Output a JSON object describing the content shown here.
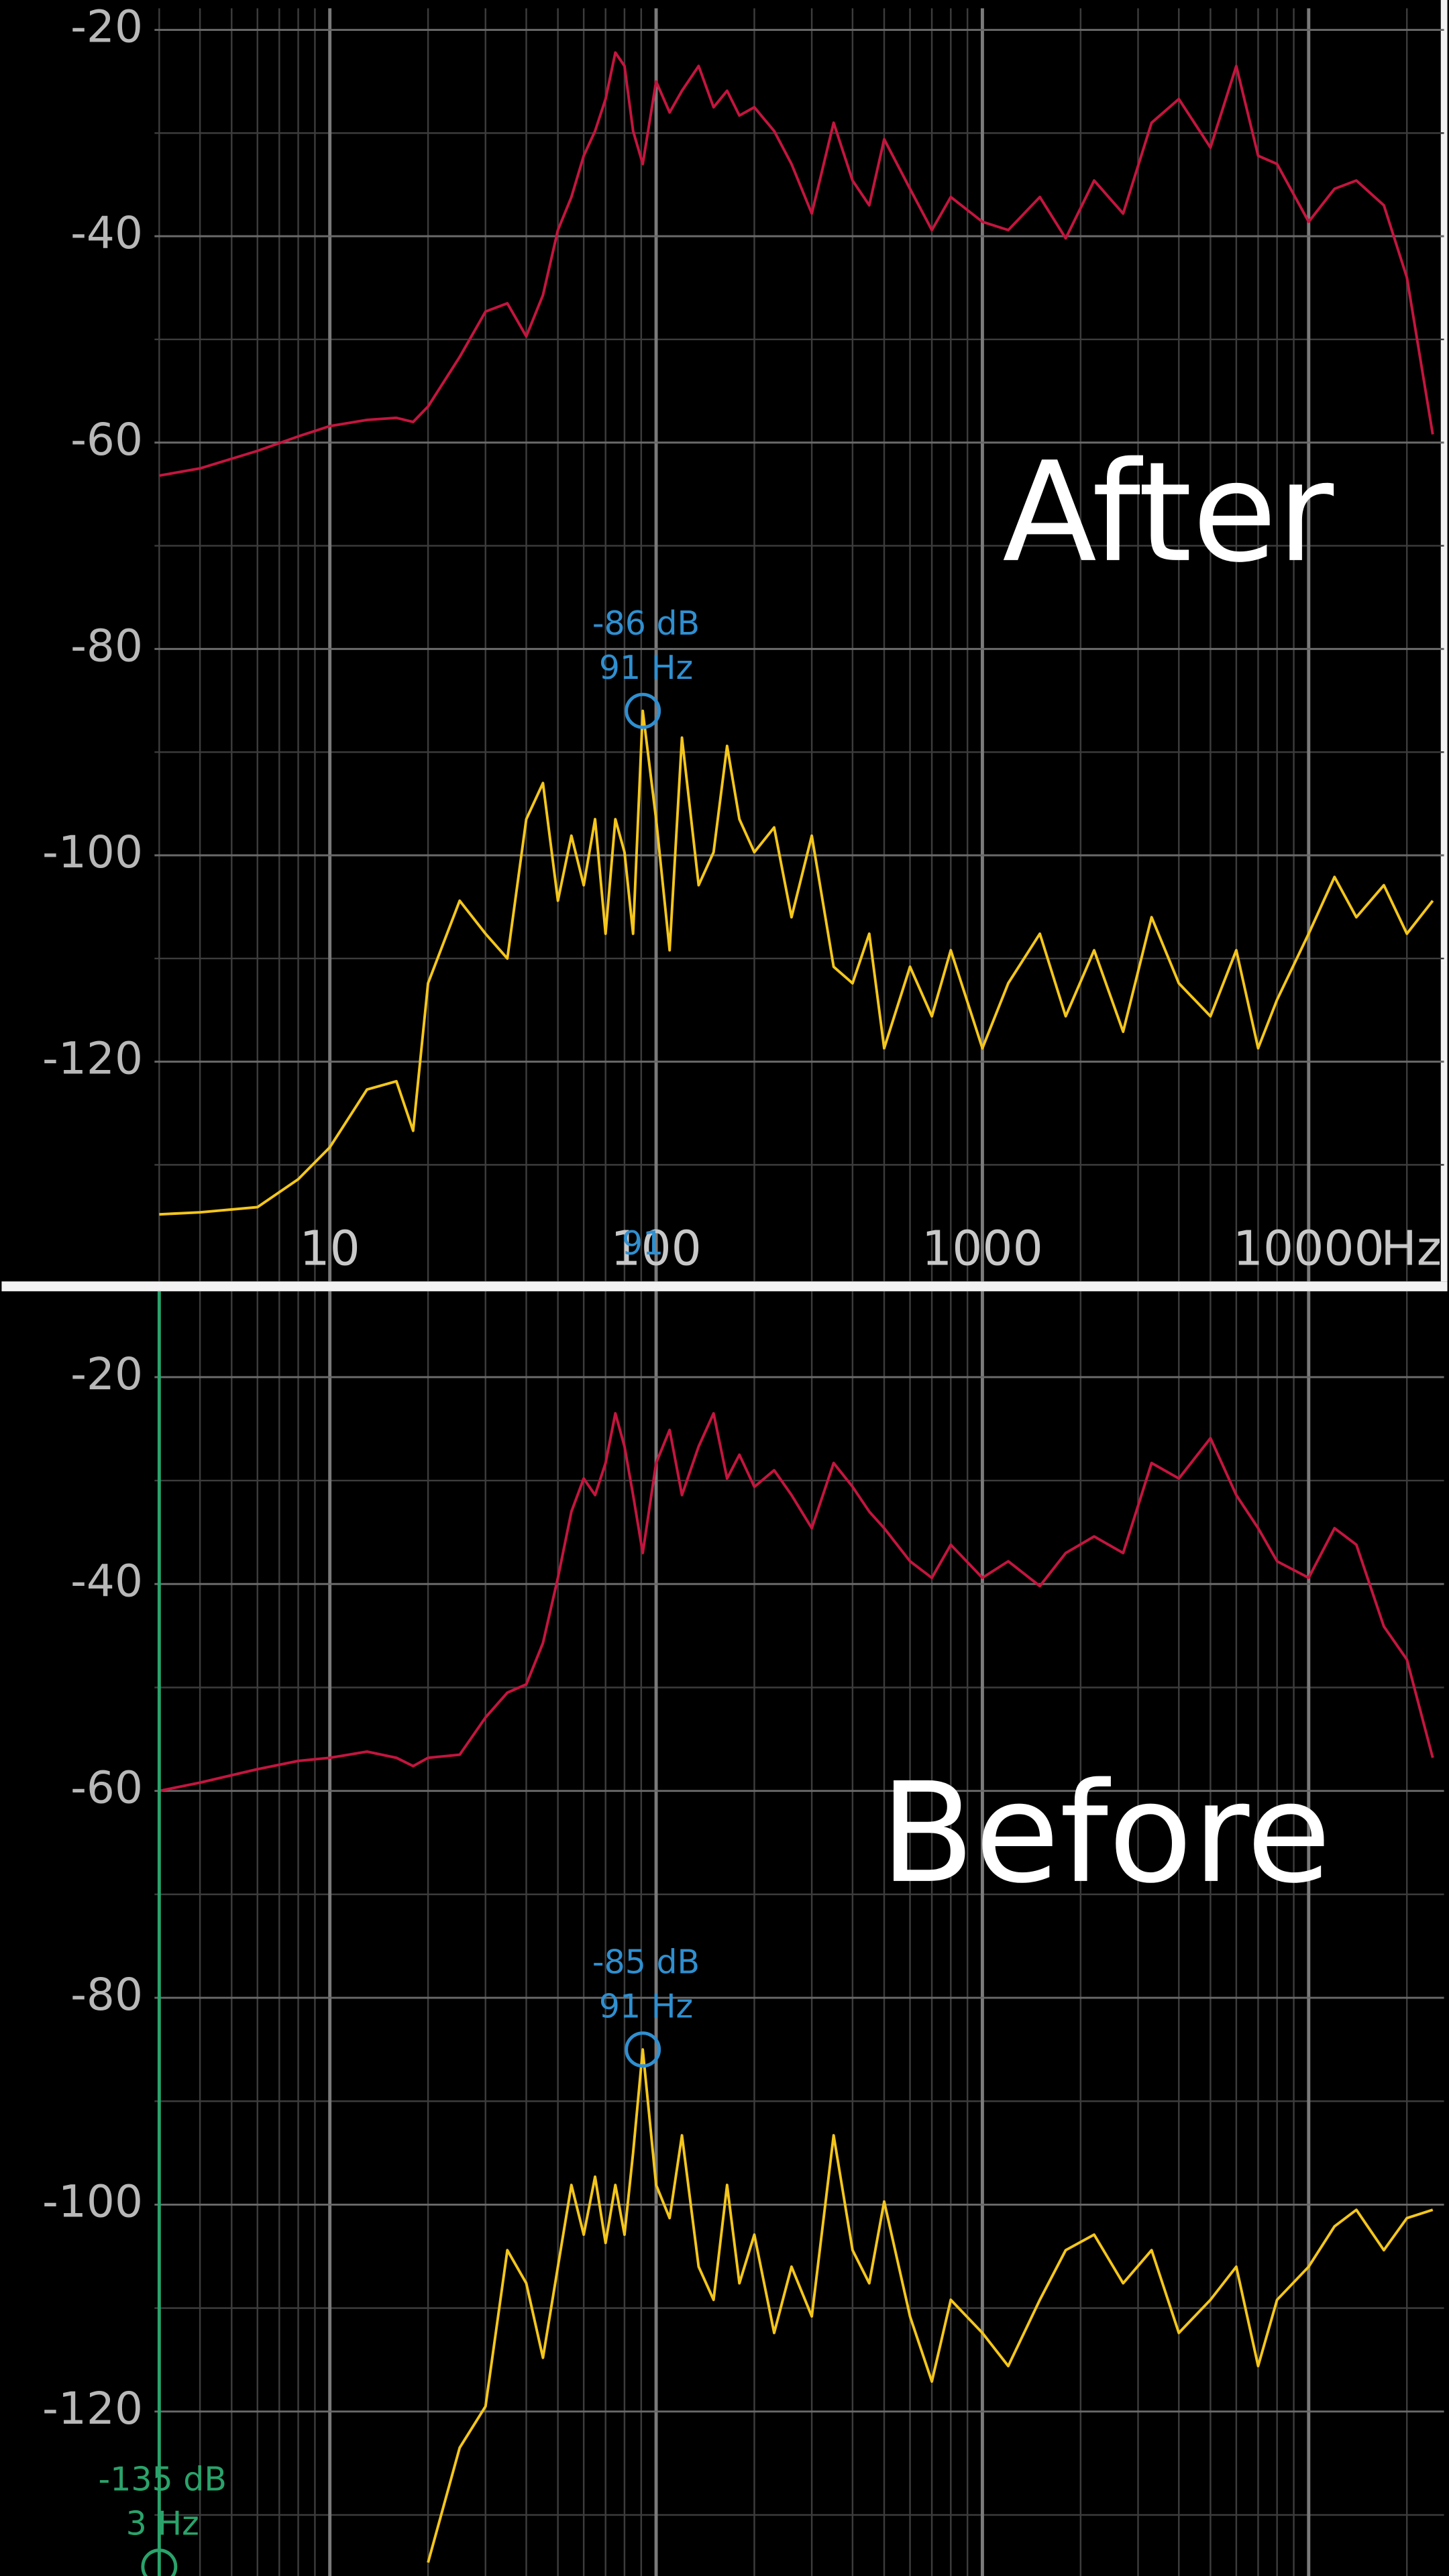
{
  "chart_data": [
    {
      "type": "line",
      "annotation": "After",
      "log_x": true,
      "grid": true,
      "show_xtick_labels": true,
      "x_unit": "Hz",
      "xlim": [
        2.9,
        26000
      ],
      "ylim": [
        -141.3,
        -17.9
      ],
      "xticks": [
        10,
        100,
        1000,
        10000
      ],
      "x_minor_ticks": [
        3,
        4,
        5,
        6,
        7,
        8,
        9,
        20,
        30,
        40,
        50,
        60,
        70,
        80,
        90,
        200,
        300,
        400,
        500,
        600,
        700,
        800,
        900,
        2000,
        3000,
        4000,
        5000,
        6000,
        7000,
        8000,
        9000,
        20000
      ],
      "yticks": [
        -20,
        -40,
        -60,
        -80,
        -100,
        -120
      ],
      "y_minor_ticks": [
        -30,
        -50,
        -70,
        -90,
        -110,
        -130
      ],
      "x": [
        3,
        4,
        6,
        8,
        10,
        13,
        16,
        18,
        20,
        25,
        30,
        35,
        40,
        45,
        50,
        55,
        60,
        65,
        70,
        75,
        80,
        85,
        91,
        100,
        110,
        120,
        135,
        150,
        165,
        180,
        200,
        230,
        260,
        300,
        350,
        400,
        450,
        500,
        600,
        700,
        800,
        1000,
        1200,
        1500,
        1800,
        2200,
        2700,
        3300,
        4000,
        5000,
        6000,
        7000,
        8000,
        10000,
        12000,
        14000,
        17000,
        20000,
        24000
      ],
      "series": [
        {
          "color": "#c4153f",
          "values": [
            -63.2,
            -62.5,
            -60.8,
            -59.4,
            -58.4,
            -57.8,
            -57.6,
            -58,
            -56.5,
            -51.7,
            -47.3,
            -46.5,
            -49.7,
            -45.7,
            -39.4,
            -36.2,
            -32.2,
            -29.8,
            -26.7,
            -22.2,
            -23.5,
            -29.8,
            -33,
            -25,
            -28,
            -25.9,
            -23.5,
            -27.5,
            -25.9,
            -28.3,
            -27.5,
            -29.8,
            -33,
            -37.8,
            -29,
            -34.6,
            -37,
            -30.6,
            -35.4,
            -39.4,
            -36.2,
            -38.6,
            -39.4,
            -36.2,
            -40.2,
            -34.6,
            -37.8,
            -29,
            -26.7,
            -31.4,
            -23.5,
            -32.2,
            -33,
            -38.6,
            -35.4,
            -34.6,
            -37,
            -44,
            -59.2
          ]
        },
        {
          "color": "#f4c61c",
          "values": [
            -134.8,
            -134.6,
            -134.1,
            -131.4,
            -128.3,
            -122.7,
            -121.9,
            -126.7,
            -112.4,
            -104.4,
            -107.6,
            -110,
            -96.5,
            -93,
            -104.4,
            -98.1,
            -102.9,
            -96.5,
            -107.6,
            -96.5,
            -99.7,
            -107.6,
            -86,
            -96.5,
            -109.2,
            -88.6,
            -102.9,
            -99.7,
            -89.4,
            -96.5,
            -99.7,
            -97.3,
            -106,
            -98.1,
            -110.8,
            -112.4,
            -107.6,
            -118.7,
            -110.8,
            -115.6,
            -109.2,
            -118.7,
            -112.4,
            -107.6,
            -115.6,
            -109.2,
            -117.1,
            -106,
            -112.4,
            -115.6,
            -109.2,
            -118.7,
            -114,
            -107.6,
            -102.1,
            -106,
            -102.9,
            -107.6,
            -104.4
          ]
        }
      ],
      "cursors": [
        {
          "x": 91,
          "y": -86,
          "labels": [
            "-86 dB",
            "91 Hz"
          ],
          "axis_label": "91",
          "color": "#2f8fd0",
          "line": false
        }
      ]
    },
    {
      "type": "line",
      "annotation": "Before",
      "log_x": true,
      "grid": true,
      "show_xtick_labels": false,
      "xlim": [
        2.9,
        26000
      ],
      "ylim": [
        -135.9,
        -11.7
      ],
      "xticks": [
        10,
        100,
        1000,
        10000
      ],
      "x_minor_ticks": [
        3,
        4,
        5,
        6,
        7,
        8,
        9,
        20,
        30,
        40,
        50,
        60,
        70,
        80,
        90,
        200,
        300,
        400,
        500,
        600,
        700,
        800,
        900,
        2000,
        3000,
        4000,
        5000,
        6000,
        7000,
        8000,
        9000,
        20000
      ],
      "yticks": [
        -20,
        -40,
        -60,
        -80,
        -100,
        -120
      ],
      "y_minor_ticks": [
        -30,
        -50,
        -70,
        -90,
        -110,
        -130
      ],
      "x": [
        3,
        4,
        6,
        8,
        10,
        13,
        16,
        18,
        20,
        25,
        30,
        35,
        40,
        45,
        50,
        55,
        60,
        65,
        70,
        75,
        80,
        85,
        91,
        100,
        110,
        120,
        135,
        150,
        165,
        180,
        200,
        230,
        260,
        300,
        350,
        400,
        450,
        500,
        600,
        700,
        800,
        1000,
        1200,
        1500,
        1800,
        2200,
        2700,
        3300,
        4000,
        5000,
        6000,
        7000,
        8000,
        10000,
        12000,
        14000,
        17000,
        20000,
        24000
      ],
      "series": [
        {
          "color": "#c4153f",
          "values": [
            -60,
            -59.2,
            -57.9,
            -57.1,
            -56.8,
            -56.2,
            -56.8,
            -57.6,
            -56.8,
            -56.5,
            -52.9,
            -50.5,
            -49.7,
            -45.7,
            -39.4,
            -33,
            -29.8,
            -31.4,
            -28.3,
            -23.5,
            -26.7,
            -31.4,
            -37,
            -28.3,
            -25.1,
            -31.4,
            -26.7,
            -23.5,
            -29.8,
            -27.5,
            -30.6,
            -29,
            -31.4,
            -34.6,
            -28.3,
            -30.6,
            -33,
            -34.6,
            -37.8,
            -39.4,
            -36.2,
            -39.4,
            -37.8,
            -40.2,
            -37,
            -35.4,
            -37,
            -28.3,
            -29.8,
            -25.9,
            -31.4,
            -34.6,
            -37.8,
            -39.4,
            -34.6,
            -36.2,
            -44.1,
            -47.3,
            -56.8
          ]
        },
        {
          "color": "#f4c61c",
          "values": [
            null,
            null,
            null,
            null,
            null,
            null,
            null,
            null,
            -134.6,
            -123.5,
            -119.5,
            -104.4,
            -107.6,
            -114.8,
            -106,
            -98.1,
            -102.9,
            -97.3,
            -103.7,
            -98.1,
            -102.9,
            -95,
            -85,
            -98.1,
            -101.3,
            -93.3,
            -106,
            -109.2,
            -98.1,
            -107.6,
            -102.9,
            -112.4,
            -106,
            -110.8,
            -93.3,
            -104.4,
            -107.6,
            -99.7,
            -110.8,
            -117.1,
            -109.2,
            -112.4,
            -115.6,
            -109.2,
            -104.4,
            -102.9,
            -107.6,
            -104.4,
            -112.4,
            -109.2,
            -106,
            -115.6,
            -109.2,
            -106,
            -102.1,
            -100.5,
            -104.4,
            -101.3,
            -100.5
          ]
        }
      ],
      "cursors": [
        {
          "x": 91,
          "y": -85,
          "labels": [
            "-85 dB",
            "91 Hz"
          ],
          "color": "#2f8fd0",
          "line": false
        },
        {
          "x": 3,
          "y": -135,
          "labels": [
            "-135 dB",
            "3 Hz"
          ],
          "color": "#2aa36b",
          "line": true
        }
      ]
    }
  ]
}
